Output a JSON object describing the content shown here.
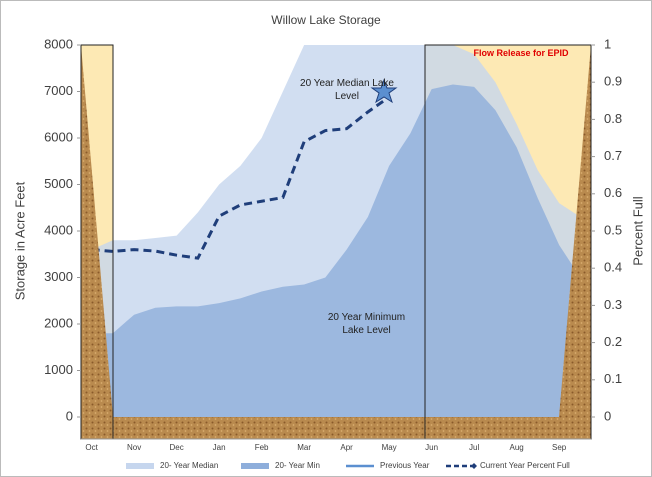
{
  "chart_data": {
    "type": "area",
    "title": "Willow Lake Storage",
    "y_label": "Storage in Acre Feet",
    "y2_label": "Percent Full",
    "categories": [
      "Oct",
      null,
      "Nov",
      null,
      "Dec",
      null,
      "Jan",
      null,
      "Feb",
      null,
      "Mar",
      null,
      "Apr",
      null,
      "May",
      null,
      "Jun",
      null,
      "Jul",
      null,
      "Aug",
      null,
      "Sep",
      null
    ],
    "ylim": [
      0,
      8000
    ],
    "yticks": [
      0,
      1000,
      2000,
      3000,
      4000,
      5000,
      6000,
      7000,
      8000
    ],
    "y2lim": [
      0,
      1
    ],
    "y2ticks": [
      0,
      0.1,
      0.2,
      0.3,
      0.4,
      0.5,
      0.6,
      0.7,
      0.8,
      0.9,
      1
    ],
    "series": [
      {
        "name": "20- Year Median",
        "type": "area",
        "color": "#c6d6ee",
        "values": [
          3600,
          3800,
          3800,
          3850,
          3900,
          4400,
          5000,
          5400,
          6000,
          7000,
          8000,
          8000,
          8000,
          8000,
          8000,
          8000,
          8000,
          8000,
          7800,
          7200,
          6300,
          5300,
          4600,
          4300
        ]
      },
      {
        "name": "20- Year Min",
        "type": "area",
        "color": "#8eaedb",
        "values": [
          1800,
          1800,
          2200,
          2350,
          2380,
          2380,
          2450,
          2550,
          2700,
          2800,
          2850,
          3000,
          3600,
          4300,
          5400,
          6100,
          7050,
          7150,
          7100,
          6600,
          5800,
          4700,
          3700,
          3000
        ]
      },
      {
        "name": "Previous Year",
        "type": "line",
        "color": "#5b8fd0",
        "values": [
          null,
          null,
          null,
          null,
          null,
          null,
          null,
          null,
          null,
          null,
          null,
          null,
          null,
          null,
          null,
          null,
          null,
          null,
          null,
          null,
          null,
          null,
          null,
          null
        ]
      },
      {
        "name": "Current Year Percent Full",
        "type": "line",
        "axis": "y2",
        "dashed": true,
        "color": "#1f3e7a",
        "values": [
          0.45,
          0.445,
          0.45,
          0.446,
          0.435,
          0.427,
          0.54,
          0.57,
          0.58,
          0.59,
          0.74,
          0.77,
          0.775,
          0.82,
          0.86,
          null,
          null,
          null,
          null,
          null,
          null,
          null,
          null,
          null
        ]
      }
    ],
    "annotations": [
      "Flow Release for EPID",
      "20 Year Median Lake Level",
      "20 Year Minimum Lake Level"
    ]
  }
}
